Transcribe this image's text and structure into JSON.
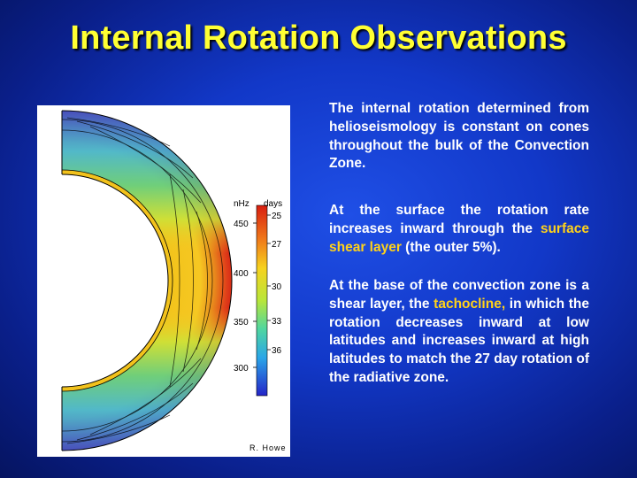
{
  "slide": {
    "title": "Internal Rotation Observations"
  },
  "figure": {
    "unit_left": "nHz",
    "unit_right": "days",
    "left_ticks": [
      "450",
      "400",
      "350",
      "300"
    ],
    "right_ticks": [
      "25",
      "27",
      "30",
      "33",
      "36"
    ],
    "credit": "R. Howe",
    "colors": {
      "fast": "#d81e10",
      "mid": "#f7c21e",
      "slow": "#2b2fd0",
      "core": "#ffffff"
    }
  },
  "text": {
    "p1": "The internal rotation determined from helioseismology is constant on cones throughout  the bulk of the Convection Zone.",
    "p2_before": "At the surface the rotation rate increases inward through the ",
    "p2_highlight": "surface shear layer",
    "p2_after": " (the outer 5%).",
    "p3_before": "At the base of the convection zone is a shear layer, the ",
    "p3_highlight": "tachocline,",
    "p3_after": " in which the rotation decreases inward at low latitudes and increases inward at high latitudes to match the 27 day rotation of the radiative zone."
  }
}
